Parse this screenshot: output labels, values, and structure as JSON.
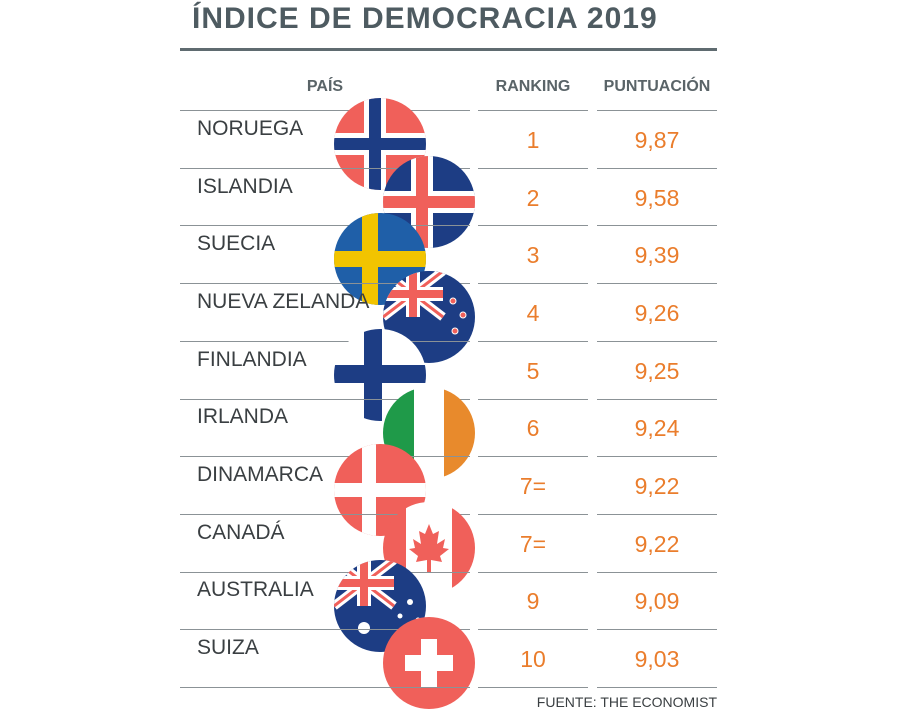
{
  "chart_data": {
    "type": "table",
    "title": "ÍNDICE DE DEMOCRACIA 2019",
    "columns": [
      "PAÍS",
      "RANKING",
      "PUNTUACIÓN"
    ],
    "rows": [
      {
        "country": "NORUEGA",
        "rank": "1",
        "score": "9,87",
        "flag": "norway-flag-icon"
      },
      {
        "country": "ISLANDIA",
        "rank": "2",
        "score": "9,58",
        "flag": "iceland-flag-icon"
      },
      {
        "country": "SUECIA",
        "rank": "3",
        "score": "9,39",
        "flag": "sweden-flag-icon"
      },
      {
        "country": "NUEVA ZELANDA",
        "rank": "4",
        "score": "9,26",
        "flag": "new-zealand-flag-icon"
      },
      {
        "country": "FINLANDIA",
        "rank": "5",
        "score": "9,25",
        "flag": "finland-flag-icon"
      },
      {
        "country": "IRLANDA",
        "rank": "6",
        "score": "9,24",
        "flag": "ireland-flag-icon"
      },
      {
        "country": "DINAMARCA",
        "rank": "7=",
        "score": "9,22",
        "flag": "denmark-flag-icon"
      },
      {
        "country": "CANADÁ",
        "rank": "7=",
        "score": "9,22",
        "flag": "canada-flag-icon"
      },
      {
        "country": "AUSTRALIA",
        "rank": "9",
        "score": "9,09",
        "flag": "australia-flag-icon"
      },
      {
        "country": "SUIZA",
        "rank": "10",
        "score": "9,03",
        "flag": "switzerland-flag-icon"
      }
    ],
    "source": "FUENTE: THE ECONOMIST"
  },
  "colors": {
    "title": "#4e5b61",
    "values": "#ea7d2c",
    "text": "#3a3f42",
    "rule": "#8b9296",
    "flag_red": "#f0605a",
    "flag_blue": "#1d3d84",
    "flag_yellow": "#f2c400",
    "flag_green": "#1f9a49",
    "flag_orange": "#e88a2c"
  }
}
